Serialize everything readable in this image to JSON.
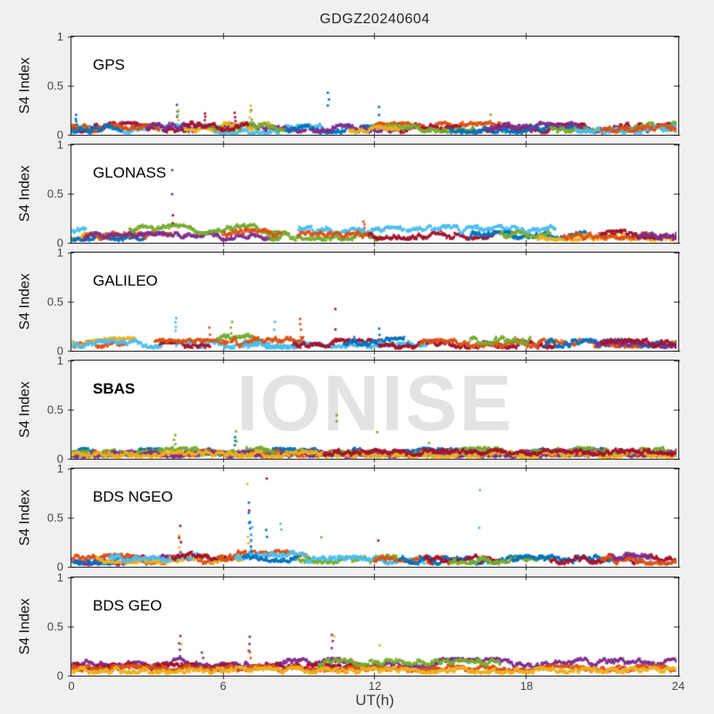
{
  "header": {
    "title": "GDGZ20240604"
  },
  "watermark": "IONISE",
  "axes": {
    "ylabel": "S4 Index",
    "xlabel": "UT(h)",
    "ytick_labels": [
      "1",
      "0.5",
      "0"
    ],
    "xtick_labels": [
      "0",
      "6",
      "12",
      "18",
      "24"
    ],
    "xlim": [
      0,
      24
    ],
    "ylim": [
      0,
      1
    ]
  },
  "palette": {
    "blue": "#0072BD",
    "orange": "#D95319",
    "yellow": "#EDB120",
    "purple": "#7E2F8E",
    "green": "#77AC30",
    "cyan": "#4DBEEE",
    "darkred": "#A2142F"
  },
  "chart_meta": {
    "strand_format": "[color, t_start_h, t_end_h, base_s4, amp_s4]",
    "spike_format": "[color, t_h, s4_lo, s4_hi, n_points]"
  },
  "chart_data": [
    {
      "type": "scatter",
      "label": "GPS",
      "bold": false,
      "ylabel": "S4 Index",
      "xlim": [
        0,
        24
      ],
      "ylim": [
        0,
        1
      ],
      "xticks": [
        0,
        6,
        12,
        18,
        24
      ],
      "yticks": [
        0,
        0.5,
        1
      ],
      "strands": [
        [
          "cyan",
          0,
          10.5,
          0.05,
          0.05
        ],
        [
          "darkred",
          0,
          5,
          0.07,
          0.05
        ],
        [
          "orange",
          0,
          3.5,
          0.06,
          0.04
        ],
        [
          "blue",
          0,
          2,
          0.05,
          0.04
        ],
        [
          "purple",
          3,
          9.3,
          0.06,
          0.05
        ],
        [
          "yellow",
          4.5,
          8,
          0.07,
          0.05
        ],
        [
          "green",
          5.5,
          8.5,
          0.08,
          0.05
        ],
        [
          "darkred",
          4.5,
          7,
          0.09,
          0.06
        ],
        [
          "blue",
          8.5,
          12.5,
          0.05,
          0.04
        ],
        [
          "purple",
          9.5,
          13,
          0.06,
          0.04
        ],
        [
          "orange",
          12,
          17,
          0.07,
          0.05
        ],
        [
          "darkred",
          13,
          24,
          0.06,
          0.05
        ],
        [
          "green",
          12.5,
          16,
          0.06,
          0.04
        ],
        [
          "blue",
          15,
          20,
          0.05,
          0.04
        ],
        [
          "purple",
          16.5,
          21,
          0.07,
          0.05
        ],
        [
          "green",
          19,
          24,
          0.07,
          0.05
        ],
        [
          "cyan",
          20,
          24,
          0.05,
          0.04
        ],
        [
          "yellow",
          11,
          13,
          0.05,
          0.03
        ],
        [
          "orange",
          21,
          24,
          0.06,
          0.04
        ]
      ],
      "spikes": [
        [
          "blue",
          0.2,
          0.1,
          0.2,
          4
        ],
        [
          "blue",
          4.2,
          0.18,
          0.3,
          3
        ],
        [
          "yellow",
          4.25,
          0.15,
          0.25,
          3
        ],
        [
          "darkred",
          5.3,
          0.15,
          0.22,
          3
        ],
        [
          "darkred",
          6.5,
          0.14,
          0.22,
          3
        ],
        [
          "yellow",
          7.1,
          0.18,
          0.3,
          3
        ],
        [
          "green",
          7.15,
          0.15,
          0.25,
          2
        ],
        [
          "blue",
          10.2,
          0.3,
          0.43,
          3
        ],
        [
          "blue",
          12.2,
          0.2,
          0.28,
          2
        ],
        [
          "green",
          16.6,
          0.14,
          0.2,
          2
        ]
      ]
    },
    {
      "type": "scatter",
      "label": "GLONASS",
      "bold": false,
      "ylabel": "S4 Index",
      "xlim": [
        0,
        24
      ],
      "ylim": [
        0,
        1
      ],
      "xticks": [
        0,
        6,
        12,
        18,
        24
      ],
      "yticks": [
        0,
        0.5,
        1
      ],
      "strands": [
        [
          "yellow",
          0,
          1.8,
          0.06,
          0.04
        ],
        [
          "cyan",
          0,
          0.6,
          0.12,
          0.03
        ],
        [
          "blue",
          0,
          3,
          0.05,
          0.03
        ],
        [
          "orange",
          0.5,
          4,
          0.06,
          0.04
        ],
        [
          "purple",
          0.5,
          8.2,
          0.06,
          0.04
        ],
        [
          "green",
          2.3,
          8.3,
          0.13,
          0.05
        ],
        [
          "orange",
          6,
          8.5,
          0.09,
          0.04
        ],
        [
          "green",
          7.8,
          12.3,
          0.06,
          0.04
        ],
        [
          "cyan",
          9,
          13.2,
          0.12,
          0.04
        ],
        [
          "orange",
          9,
          11.8,
          0.07,
          0.04
        ],
        [
          "darkred",
          11.8,
          16.8,
          0.07,
          0.04
        ],
        [
          "cyan",
          13.3,
          19.2,
          0.13,
          0.04
        ],
        [
          "blue",
          15.8,
          20.5,
          0.07,
          0.04
        ],
        [
          "green",
          17,
          19,
          0.08,
          0.03
        ],
        [
          "yellow",
          18.5,
          24,
          0.05,
          0.03
        ],
        [
          "orange",
          19.5,
          23,
          0.07,
          0.04
        ],
        [
          "darkred",
          21,
          24,
          0.08,
          0.04
        ],
        [
          "purple",
          22.5,
          24,
          0.07,
          0.04
        ]
      ],
      "spikes": [
        [
          "purple",
          4.0,
          0.72,
          0.76,
          1
        ],
        [
          "purple",
          4.0,
          0.48,
          0.52,
          1
        ],
        [
          "darkred",
          4.05,
          0.2,
          0.28,
          2
        ],
        [
          "orange",
          11.6,
          0.15,
          0.22,
          3
        ]
      ]
    },
    {
      "type": "scatter",
      "label": "GALILEO",
      "bold": false,
      "ylabel": "S4 Index",
      "xlim": [
        0,
        24
      ],
      "ylim": [
        0,
        1
      ],
      "xticks": [
        0,
        6,
        12,
        18,
        24
      ],
      "yticks": [
        0,
        0.5,
        1
      ],
      "strands": [
        [
          "orange",
          0,
          2.2,
          0.06,
          0.03
        ],
        [
          "yellow",
          0,
          2.6,
          0.08,
          0.05
        ],
        [
          "cyan",
          0,
          9.2,
          0.06,
          0.04
        ],
        [
          "darkred",
          3.5,
          5.5,
          0.06,
          0.03
        ],
        [
          "orange",
          3.3,
          6.2,
          0.07,
          0.04
        ],
        [
          "green",
          5.8,
          7.6,
          0.11,
          0.05
        ],
        [
          "orange",
          6.3,
          9.2,
          0.08,
          0.05
        ],
        [
          "cyan",
          6.8,
          12.2,
          0.06,
          0.04
        ],
        [
          "darkred",
          8.8,
          12.2,
          0.07,
          0.04
        ],
        [
          "blue",
          10.8,
          13.2,
          0.09,
          0.04
        ],
        [
          "cyan",
          12.2,
          14.5,
          0.07,
          0.03
        ],
        [
          "darkred",
          12.2,
          19.2,
          0.06,
          0.04
        ],
        [
          "orange",
          13.8,
          24,
          0.07,
          0.04
        ],
        [
          "green",
          15.8,
          18.2,
          0.11,
          0.05
        ],
        [
          "blue",
          18.8,
          24,
          0.07,
          0.04
        ],
        [
          "purple",
          20.8,
          24,
          0.06,
          0.03
        ],
        [
          "darkred",
          21,
          24,
          0.07,
          0.04
        ]
      ],
      "spikes": [
        [
          "cyan",
          4.15,
          0.2,
          0.33,
          4
        ],
        [
          "orange",
          5.5,
          0.16,
          0.23,
          2
        ],
        [
          "green",
          6.35,
          0.18,
          0.3,
          3
        ],
        [
          "cyan",
          8.05,
          0.22,
          0.3,
          2
        ],
        [
          "orange",
          9.1,
          0.22,
          0.33,
          3
        ],
        [
          "darkred",
          10.45,
          0.4,
          0.44,
          1
        ],
        [
          "darkred",
          10.45,
          0.12,
          0.22,
          2
        ],
        [
          "blue",
          12.2,
          0.16,
          0.22,
          2
        ]
      ]
    },
    {
      "type": "scatter",
      "label": "SBAS",
      "bold": true,
      "ylabel": "S4 Index",
      "xlim": [
        0,
        24
      ],
      "ylim": [
        0,
        1
      ],
      "xticks": [
        0,
        6,
        12,
        18,
        24
      ],
      "yticks": [
        0,
        0.5,
        1
      ],
      "strands": [
        [
          "blue",
          0,
          24,
          0.06,
          0.04
        ],
        [
          "orange",
          0,
          24,
          0.05,
          0.03
        ],
        [
          "green",
          0,
          24,
          0.07,
          0.04
        ],
        [
          "purple",
          0,
          24,
          0.04,
          0.03
        ],
        [
          "yellow",
          0,
          24,
          0.04,
          0.03
        ],
        [
          "darkred",
          10,
          24,
          0.06,
          0.03
        ]
      ],
      "spikes": [
        [
          "green",
          4.1,
          0.15,
          0.24,
          3
        ],
        [
          "blue",
          6.5,
          0.14,
          0.22,
          3
        ],
        [
          "green",
          6.55,
          0.18,
          0.28,
          2
        ],
        [
          "green",
          10.5,
          0.38,
          0.45,
          2
        ],
        [
          "green",
          12.15,
          0.24,
          0.29,
          1
        ],
        [
          "green",
          14.2,
          0.14,
          0.18,
          1
        ]
      ]
    },
    {
      "type": "scatter",
      "label": "BDS NGEO",
      "bold": false,
      "ylabel": "S4 Index",
      "xlim": [
        0,
        24
      ],
      "ylim": [
        0,
        1
      ],
      "xticks": [
        0,
        6,
        12,
        18,
        24
      ],
      "yticks": [
        0,
        0.5,
        1
      ],
      "strands": [
        [
          "purple",
          0,
          4.2,
          0.06,
          0.05
        ],
        [
          "blue",
          0,
          3,
          0.06,
          0.04
        ],
        [
          "orange",
          0,
          6,
          0.07,
          0.05
        ],
        [
          "yellow",
          1,
          6.8,
          0.08,
          0.05
        ],
        [
          "cyan",
          1.5,
          5,
          0.09,
          0.04
        ],
        [
          "darkred",
          4,
          6.5,
          0.11,
          0.05
        ],
        [
          "orange",
          5.8,
          9.3,
          0.1,
          0.06
        ],
        [
          "cyan",
          6.5,
          9.5,
          0.08,
          0.07
        ],
        [
          "blue",
          6.8,
          9,
          0.09,
          0.05
        ],
        [
          "green",
          9,
          13,
          0.07,
          0.04
        ],
        [
          "cyan",
          9.3,
          14,
          0.06,
          0.04
        ],
        [
          "orange",
          12,
          15,
          0.06,
          0.04
        ],
        [
          "blue",
          13,
          18,
          0.06,
          0.04
        ],
        [
          "darkred",
          14,
          17,
          0.08,
          0.04
        ],
        [
          "green",
          15,
          19,
          0.06,
          0.04
        ],
        [
          "blue",
          17.5,
          21.5,
          0.07,
          0.04
        ],
        [
          "darkred",
          19,
          24,
          0.07,
          0.05
        ],
        [
          "orange",
          21,
          24,
          0.06,
          0.04
        ],
        [
          "purple",
          21.5,
          23,
          0.09,
          0.04
        ]
      ],
      "spikes": [
        [
          "yellow",
          4.3,
          0.2,
          0.32,
          3
        ],
        [
          "darkred",
          4.3,
          0.3,
          0.42,
          2
        ],
        [
          "purple",
          4.35,
          0.15,
          0.25,
          2
        ],
        [
          "yellow",
          7.0,
          0.8,
          0.88,
          1
        ],
        [
          "yellow",
          7.0,
          0.24,
          0.3,
          2
        ],
        [
          "blue",
          7.05,
          0.45,
          0.65,
          3
        ],
        [
          "darkred",
          7.05,
          0.55,
          0.6,
          1
        ],
        [
          "blue",
          7.1,
          0.15,
          0.45,
          6
        ],
        [
          "cyan",
          7.15,
          0.18,
          0.4,
          4
        ],
        [
          "darkred",
          7.75,
          0.88,
          0.92,
          1
        ],
        [
          "blue",
          7.75,
          0.3,
          0.38,
          2
        ],
        [
          "cyan",
          8.3,
          0.38,
          0.44,
          2
        ],
        [
          "green",
          9.9,
          0.28,
          0.32,
          1
        ],
        [
          "darkred",
          12.2,
          0.25,
          0.28,
          1
        ],
        [
          "cyan",
          16.2,
          0.76,
          0.8,
          1
        ],
        [
          "cyan",
          16.2,
          0.37,
          0.41,
          1
        ]
      ]
    },
    {
      "type": "scatter",
      "label": "BDS GEO",
      "bold": false,
      "ylabel": "S4 Index",
      "xlabel": "UT(h)",
      "xlim": [
        0,
        24
      ],
      "ylim": [
        0,
        1
      ],
      "xticks": [
        0,
        6,
        12,
        18,
        24
      ],
      "yticks": [
        0,
        0.5,
        1
      ],
      "strands": [
        [
          "purple",
          0,
          24,
          0.12,
          0.05
        ],
        [
          "darkred",
          0,
          12,
          0.09,
          0.03
        ],
        [
          "orange",
          0,
          24,
          0.07,
          0.03
        ],
        [
          "yellow",
          0,
          24,
          0.05,
          0.03
        ],
        [
          "green",
          9.8,
          17,
          0.13,
          0.03
        ]
      ],
      "spikes": [
        [
          "purple",
          4.3,
          0.2,
          0.4,
          4
        ],
        [
          "yellow",
          4.35,
          0.3,
          0.34,
          1
        ],
        [
          "purple",
          5.2,
          0.18,
          0.24,
          2
        ],
        [
          "purple",
          7.05,
          0.25,
          0.4,
          3
        ],
        [
          "orange",
          7.1,
          0.18,
          0.24,
          2
        ],
        [
          "purple",
          10.35,
          0.28,
          0.42,
          3
        ],
        [
          "yellow",
          10.4,
          0.38,
          0.42,
          1
        ],
        [
          "yellow",
          12.2,
          0.29,
          0.33,
          1
        ]
      ]
    }
  ]
}
